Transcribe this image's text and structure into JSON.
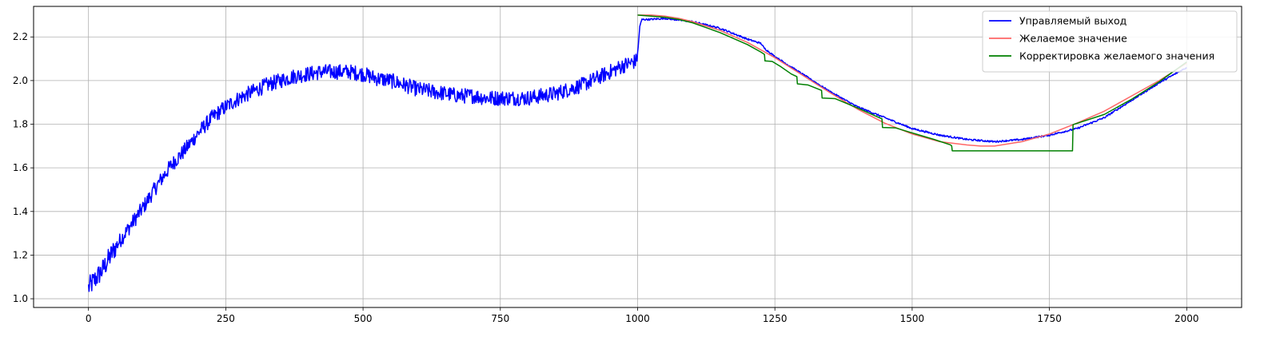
{
  "chart_data": {
    "type": "line",
    "title": "",
    "xlabel": "",
    "ylabel": "",
    "xlim": [
      -100,
      2100
    ],
    "ylim": [
      0.96,
      2.34
    ],
    "xticks": [
      0,
      250,
      500,
      750,
      1000,
      1250,
      1500,
      1750,
      2000
    ],
    "xtick_labels": [
      "0",
      "250",
      "500",
      "750",
      "1000",
      "1250",
      "1500",
      "1750",
      "2000"
    ],
    "yticks": [
      1.0,
      1.2,
      1.4,
      1.6,
      1.8,
      2.0,
      2.2
    ],
    "ytick_labels": [
      "1.0",
      "1.2",
      "1.4",
      "1.6",
      "1.8",
      "2.0",
      "2.2"
    ],
    "grid": true,
    "legend_position": "top-right",
    "series": [
      {
        "name": "Управляемый выход",
        "color": "#0000ff",
        "noisy": true,
        "x": [
          0,
          25,
          50,
          75,
          100,
          125,
          150,
          175,
          200,
          225,
          250,
          275,
          300,
          325,
          350,
          375,
          400,
          425,
          450,
          475,
          500,
          525,
          550,
          575,
          600,
          625,
          650,
          675,
          700,
          725,
          750,
          775,
          800,
          825,
          850,
          875,
          900,
          925,
          950,
          975,
          998,
          1001,
          1004,
          1008,
          1020,
          1050,
          1100,
          1150,
          1200,
          1225,
          1230,
          1250,
          1300,
          1350,
          1400,
          1450,
          1500,
          1550,
          1600,
          1650,
          1700,
          1750,
          1800,
          1850,
          1900,
          1950,
          2000
        ],
        "y": [
          1.05,
          1.13,
          1.24,
          1.33,
          1.42,
          1.52,
          1.61,
          1.68,
          1.76,
          1.83,
          1.88,
          1.92,
          1.95,
          1.98,
          2.0,
          2.02,
          2.03,
          2.04,
          2.04,
          2.04,
          2.03,
          2.01,
          2.0,
          1.98,
          1.96,
          1.95,
          1.94,
          1.93,
          1.93,
          1.92,
          1.92,
          1.92,
          1.92,
          1.93,
          1.94,
          1.96,
          1.98,
          2.01,
          2.04,
          2.07,
          2.09,
          2.15,
          2.25,
          2.28,
          2.28,
          2.285,
          2.27,
          2.24,
          2.19,
          2.17,
          2.15,
          2.11,
          2.03,
          1.95,
          1.88,
          1.83,
          1.78,
          1.75,
          1.73,
          1.72,
          1.73,
          1.75,
          1.78,
          1.83,
          1.91,
          1.99,
          2.06
        ]
      },
      {
        "name": "Желаемое значение",
        "color": "#ff6666",
        "noisy": false,
        "x": [
          1000,
          1025,
          1050,
          1075,
          1100,
          1150,
          1200,
          1250,
          1300,
          1350,
          1400,
          1450,
          1500,
          1550,
          1600,
          1625,
          1650,
          1700,
          1750,
          1800,
          1850,
          1900,
          1950,
          2000
        ],
        "y": [
          2.3,
          2.3,
          2.295,
          2.285,
          2.27,
          2.23,
          2.175,
          2.105,
          2.025,
          1.945,
          1.87,
          1.805,
          1.755,
          1.72,
          1.705,
          1.7,
          1.7,
          1.72,
          1.755,
          1.805,
          1.86,
          1.93,
          2.0,
          2.08
        ]
      },
      {
        "name": "Корректировка желаемого значения",
        "color": "#008000",
        "noisy": false,
        "x": [
          1000,
          1025,
          1050,
          1075,
          1100,
          1150,
          1200,
          1225,
          1231,
          1232,
          1245,
          1260,
          1280,
          1290,
          1291,
          1310,
          1330,
          1335,
          1336,
          1360,
          1400,
          1440,
          1445,
          1446,
          1470,
          1500,
          1540,
          1570,
          1572,
          1573,
          1600,
          1700,
          1792,
          1793,
          1850,
          1900,
          1950,
          2000
        ],
        "y": [
          2.3,
          2.295,
          2.29,
          2.28,
          2.265,
          2.22,
          2.165,
          2.13,
          2.12,
          2.09,
          2.088,
          2.065,
          2.03,
          2.018,
          1.985,
          1.98,
          1.96,
          1.955,
          1.92,
          1.917,
          1.875,
          1.83,
          1.825,
          1.785,
          1.783,
          1.76,
          1.73,
          1.705,
          1.7,
          1.678,
          1.678,
          1.678,
          1.678,
          1.798,
          1.845,
          1.915,
          1.995,
          2.085
        ]
      }
    ]
  }
}
